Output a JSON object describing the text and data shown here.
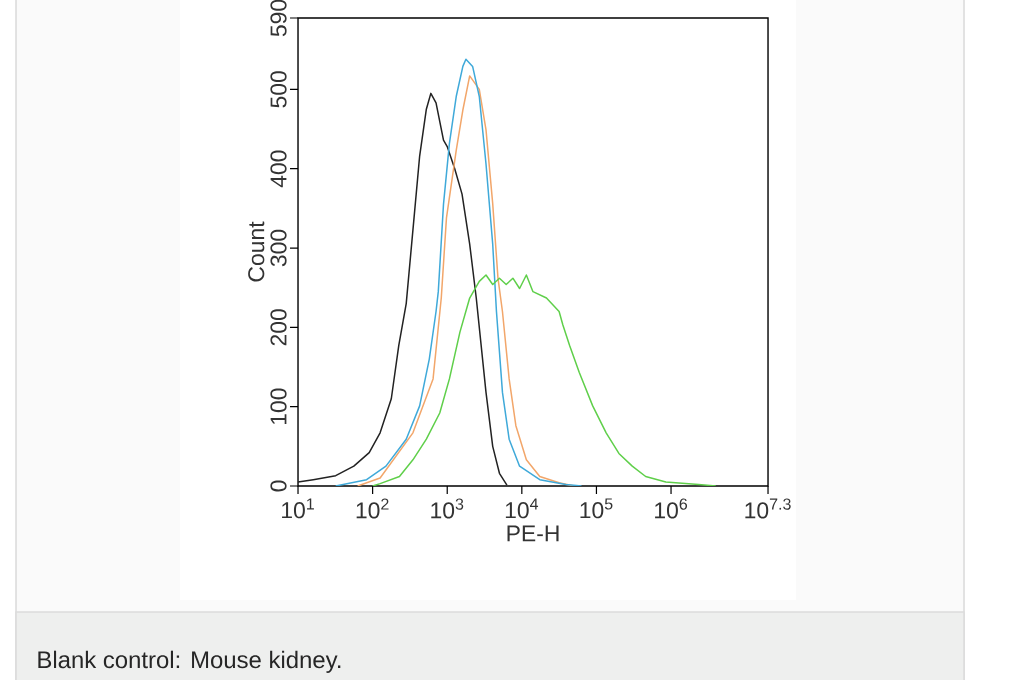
{
  "chart_data": {
    "type": "line",
    "xlabel": "PE-H",
    "ylabel": "Count",
    "log": "x",
    "annotations": [
      "Blank control: Mouse kidney."
    ],
    "xlim": [
      10,
      19952623
    ],
    "ylim": [
      0,
      590
    ],
    "xticks": [
      {
        "value": 10,
        "label": "10$^{1}$"
      },
      {
        "value": 100,
        "label": "10$^{2}$"
      },
      {
        "value": 1000,
        "label": "10$^{3}$"
      },
      {
        "value": 10000,
        "label": "10$^{4}$"
      },
      {
        "value": 100000,
        "label": "10$^{5}$"
      },
      {
        "value": 1000000,
        "label": "10$^{6}$"
      },
      {
        "value": 19952623,
        "label": "10$^{7.3}$"
      }
    ],
    "yticks": [
      0,
      100,
      200,
      300,
      400,
      500,
      590
    ],
    "series": [
      {
        "color": "#222222",
        "x": [
          10,
          16,
          32,
          56,
          90,
          126,
          178,
          224,
          282,
          355,
          427,
          525,
          603,
          708,
          891,
          1000,
          1260,
          1580,
          2000,
          2450,
          3310,
          4070,
          5010,
          6310
        ],
        "values": [
          5,
          8,
          13,
          25,
          42,
          67,
          110,
          177,
          230,
          333,
          416,
          475,
          495,
          483,
          436,
          428,
          400,
          368,
          305,
          237,
          118,
          50,
          16,
          1
        ]
      },
      {
        "color": "#f2a66a",
        "x": [
          63,
          126,
          347,
          646,
          832,
          977,
          1320,
          1620,
          2000,
          2690,
          3310,
          4070,
          4790,
          5500,
          6760,
          8320,
          11500,
          17400,
          31600,
          50100
        ],
        "values": [
          0,
          10,
          67,
          135,
          237,
          338,
          423,
          474,
          517,
          500,
          449,
          356,
          262,
          220,
          135,
          76,
          33,
          12,
          4,
          0
        ]
      },
      {
        "color": "#3fa9d9",
        "x": [
          32,
          83,
          151,
          282,
          427,
          575,
          708,
          759,
          891,
          1070,
          1320,
          1620,
          1780,
          2190,
          2690,
          3310,
          4070,
          4570,
          5500,
          6760,
          9330,
          17400,
          38900,
          63100
        ],
        "values": [
          0,
          8,
          25,
          59,
          101,
          160,
          220,
          245,
          355,
          432,
          491,
          529,
          538,
          529,
          491,
          406,
          305,
          220,
          118,
          59,
          25,
          8,
          2,
          0
        ]
      },
      {
        "color": "#5fcf4a",
        "x": [
          100,
          126,
          229,
          347,
          525,
          794,
          1070,
          1480,
          2000,
          2690,
          3310,
          4070,
          5010,
          6170,
          7590,
          9330,
          11500,
          14100,
          21400,
          31600,
          35500,
          43700,
          58900,
          89100,
          135000,
          200000,
          302000,
          457000,
          851000,
          2340000,
          3980000
        ],
        "values": [
          0,
          3,
          12,
          33,
          59,
          92,
          135,
          194,
          237,
          258,
          266,
          254,
          262,
          254,
          262,
          249,
          266,
          245,
          237,
          220,
          203,
          177,
          143,
          101,
          67,
          41,
          25,
          12,
          5,
          2,
          0
        ]
      }
    ]
  }
}
